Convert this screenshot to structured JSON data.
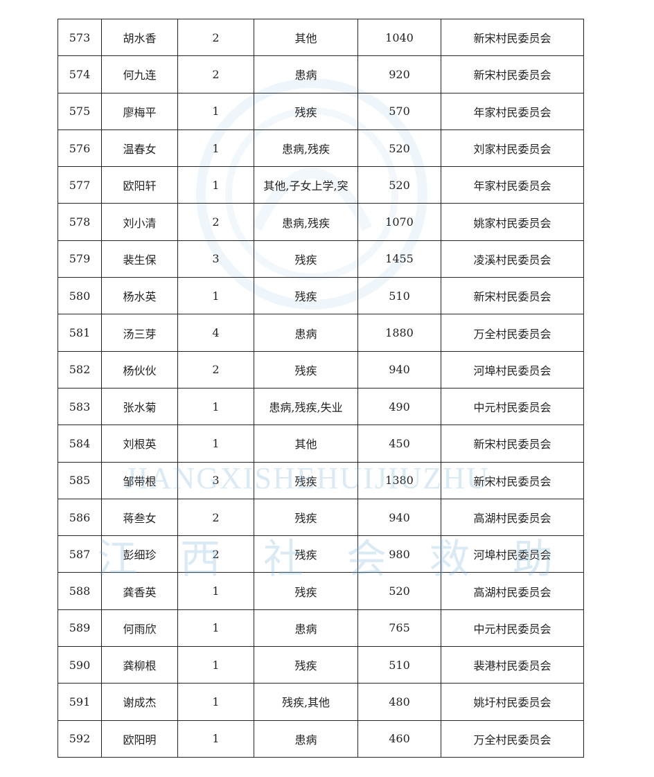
{
  "table": {
    "rows": [
      [
        "573",
        "胡水香",
        "2",
        "其他",
        "1040",
        "新宋村民委员会"
      ],
      [
        "574",
        "何九连",
        "2",
        "患病",
        "920",
        "新宋村民委员会"
      ],
      [
        "575",
        "廖梅平",
        "1",
        "残疾",
        "570",
        "年家村民委员会"
      ],
      [
        "576",
        "温春女",
        "1",
        "患病,残疾",
        "520",
        "刘家村民委员会"
      ],
      [
        "577",
        "欧阳轩",
        "1",
        "其他,子女上学,突",
        "520",
        "年家村民委员会"
      ],
      [
        "578",
        "刘小清",
        "2",
        "患病,残疾",
        "1070",
        "姚家村民委员会"
      ],
      [
        "579",
        "裴生保",
        "3",
        "残疾",
        "1455",
        "凌溪村民委员会"
      ],
      [
        "580",
        "杨水英",
        "1",
        "残疾",
        "510",
        "新宋村民委员会"
      ],
      [
        "581",
        "汤三芽",
        "4",
        "患病",
        "1880",
        "万全村民委员会"
      ],
      [
        "582",
        "杨伙伙",
        "2",
        "残疾",
        "940",
        "河埠村民委员会"
      ],
      [
        "583",
        "张水菊",
        "1",
        "患病,残疾,失业",
        "490",
        "中元村民委员会"
      ],
      [
        "584",
        "刘根英",
        "1",
        "其他",
        "450",
        "新宋村民委员会"
      ],
      [
        "585",
        "邹带根",
        "3",
        "残疾",
        "1380",
        "新宋村民委员会"
      ],
      [
        "586",
        "蒋叁女",
        "2",
        "残疾",
        "940",
        "高湖村民委员会"
      ],
      [
        "587",
        "彭细珍",
        "2",
        "残疾",
        "980",
        "河埠村民委员会"
      ],
      [
        "588",
        "龚香英",
        "1",
        "残疾",
        "520",
        "高湖村民委员会"
      ],
      [
        "589",
        "何雨欣",
        "1",
        "患病",
        "765",
        "中元村民委员会"
      ],
      [
        "590",
        "龚柳根",
        "1",
        "残疾",
        "510",
        "裴港村民委员会"
      ],
      [
        "591",
        "谢成杰",
        "1",
        "残疾,其他",
        "480",
        "姚圩村民委员会"
      ],
      [
        "592",
        "欧阳明",
        "1",
        "患病",
        "460",
        "万全村民委员会"
      ]
    ]
  },
  "watermark": {
    "latin": "JIANGXISHEHUIJIUZHU",
    "chinese": "江西社会救助",
    "color": "#78b4dc"
  }
}
